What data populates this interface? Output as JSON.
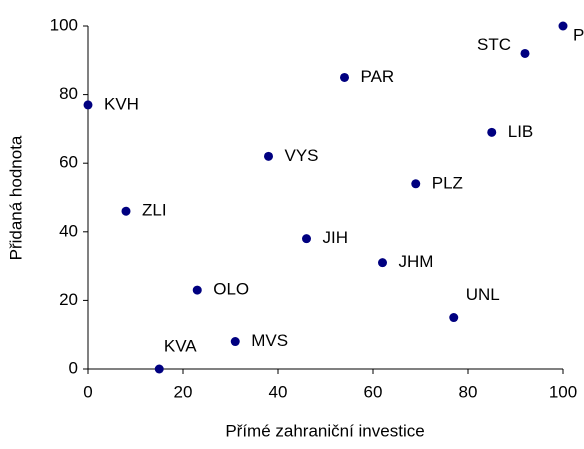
{
  "chart_data": {
    "type": "scatter",
    "xlabel": "Přímé zahraniční investice",
    "ylabel": "Přidaná hodnota",
    "labels": [
      "KVH",
      "ZLI",
      "OLO",
      "KVA",
      "MVS",
      "VYS",
      "JIH",
      "PAR",
      "JHM",
      "PLZ",
      "UNL",
      "LIB",
      "STC",
      "PHA"
    ],
    "x": [
      0,
      8,
      23,
      15,
      31,
      38,
      46,
      54,
      62,
      69,
      77,
      85,
      92,
      100
    ],
    "values": [
      77,
      46,
      23,
      0,
      8,
      62,
      38,
      85,
      31,
      54,
      15,
      69,
      92,
      100
    ],
    "color": "#000080",
    "xlim": [
      0,
      100
    ],
    "xticks": [
      0,
      20,
      40,
      60,
      80,
      100
    ],
    "ylim": [
      0,
      100
    ],
    "yticks": [
      0,
      20,
      40,
      60,
      80,
      100
    ],
    "grid": false
  }
}
